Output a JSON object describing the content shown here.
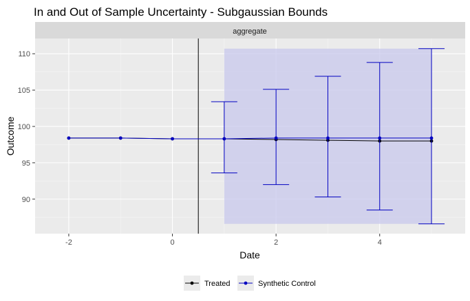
{
  "chart_data": {
    "type": "line",
    "title": "In and Out of Sample Uncertainty - Subgaussian Bounds",
    "facet_label": "aggregate",
    "xlabel": "Date",
    "ylabel": "Outcome",
    "xlim": [
      -2.65,
      5.65
    ],
    "ylim": [
      85.25,
      112.1
    ],
    "x_ticks": [
      -2,
      0,
      2,
      4
    ],
    "y_ticks": [
      90,
      95,
      100,
      105,
      110
    ],
    "treatment_line_x": 0.5,
    "series": [
      {
        "name": "Treated",
        "color": "#000000",
        "x": [
          -2,
          -1,
          0,
          1,
          2,
          3,
          4,
          5
        ],
        "y": [
          98.4,
          98.4,
          98.3,
          98.3,
          98.2,
          98.1,
          98.0,
          98.0
        ]
      },
      {
        "name": "Synthetic Control",
        "color": "#0000c0",
        "x": [
          -2,
          -1,
          0,
          1,
          2,
          3,
          4,
          5
        ],
        "y": [
          98.4,
          98.4,
          98.3,
          98.3,
          98.4,
          98.4,
          98.4,
          98.4
        ]
      }
    ],
    "error_bars": {
      "color": "#0000c0",
      "x": [
        1,
        2,
        3,
        4,
        5
      ],
      "lower": [
        93.6,
        92.0,
        90.3,
        88.5,
        86.6
      ],
      "upper": [
        103.4,
        105.1,
        106.9,
        108.8,
        110.7
      ]
    },
    "band": {
      "x_range": [
        1,
        5
      ],
      "y_range": [
        86.6,
        110.7
      ],
      "fill": "#c8c8ec"
    },
    "legend_position": "bottom"
  }
}
